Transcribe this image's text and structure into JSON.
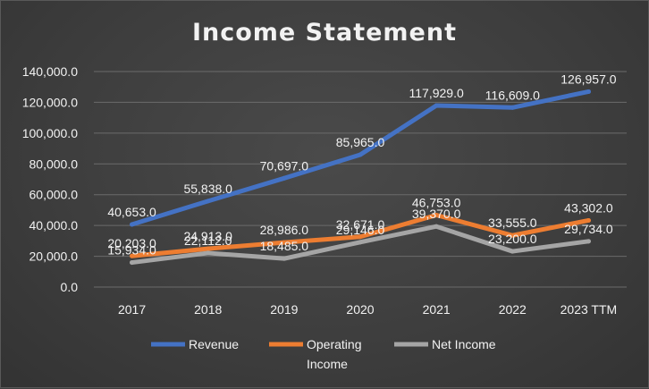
{
  "chart_data": {
    "type": "line",
    "title": "Income Statement",
    "categories": [
      "2017",
      "2018",
      "2019",
      "2020",
      "2021",
      "2022",
      "2023 TTM"
    ],
    "ylim": [
      0,
      140000
    ],
    "yticks": [
      0,
      20000,
      40000,
      60000,
      80000,
      100000,
      120000,
      140000
    ],
    "ytick_labels": [
      "0.0",
      "20,000.0",
      "40,000.0",
      "60,000.0",
      "80,000.0",
      "100,000.0",
      "120,000.0",
      "140,000.0"
    ],
    "grid": true,
    "legend_position": "bottom",
    "series": [
      {
        "name": "Revenue",
        "color": "#4472c4",
        "values": [
          40653,
          55838,
          70697,
          85965,
          117929,
          116609,
          126957
        ],
        "labels": [
          "40,653.0",
          "55,838.0",
          "70,697.0",
          "85,965.0",
          "117,929.0",
          "116,609.0",
          "126,957.0"
        ]
      },
      {
        "name": "Operating Income",
        "color": "#ed7d31",
        "values": [
          20203,
          24913,
          28986,
          32671,
          46753,
          33555,
          43302
        ],
        "labels": [
          "20,203.0",
          "24,913.0",
          "28,986.0",
          "32,671.0",
          "46,753.0",
          "33,555.0",
          "43,302.0"
        ]
      },
      {
        "name": "Net Income",
        "color": "#a5a5a5",
        "values": [
          15934,
          22112,
          18485,
          29146,
          39370,
          23200,
          29734
        ],
        "labels": [
          "15,934.0",
          "22,112.0",
          "18,485.0",
          "29,146.0",
          "39,370.0",
          "23,200.0",
          "29,734.0"
        ]
      }
    ],
    "legend_lines": [
      [
        "Revenue"
      ],
      [
        "Operating",
        "Income"
      ],
      [
        "Net Income"
      ]
    ]
  }
}
